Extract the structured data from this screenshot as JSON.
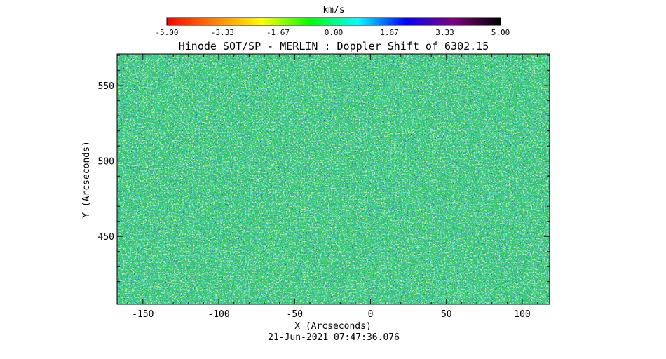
{
  "chart_data": {
    "type": "heatmap",
    "title": "Hinode SOT/SP - MERLIN : Doppler Shift of 6302.15",
    "xlabel": "X (Arcseconds)",
    "ylabel": "Y (Arcseconds)",
    "timestamp": "21-Jun-2021 07:47:36.076",
    "xlim": [
      -167,
      118
    ],
    "ylim": [
      405,
      571
    ],
    "x_ticks": [
      -150,
      -100,
      -50,
      0,
      50,
      100
    ],
    "y_ticks": [
      450,
      500,
      550
    ],
    "colorbar": {
      "label": "km/s",
      "range": [
        -5.0,
        5.0
      ],
      "ticks": [
        "-5.00",
        "-3.33",
        "-1.67",
        "0.00",
        "1.67",
        "3.33",
        "5.00"
      ],
      "tick_values": [
        -5.0,
        -3.33,
        -1.67,
        0.0,
        1.67,
        3.33,
        5.0
      ],
      "colors": [
        "#ff0000",
        "#ff8000",
        "#ffff00",
        "#00ff00",
        "#00ffff",
        "#0000ff",
        "#800080",
        "#000000"
      ]
    },
    "field_colors": {
      "dominant": "#2fd05a",
      "blue_patches": "#1e3cd2",
      "cyan_patches": "#22d6c8",
      "yellow_patches": "#e6e642"
    }
  }
}
